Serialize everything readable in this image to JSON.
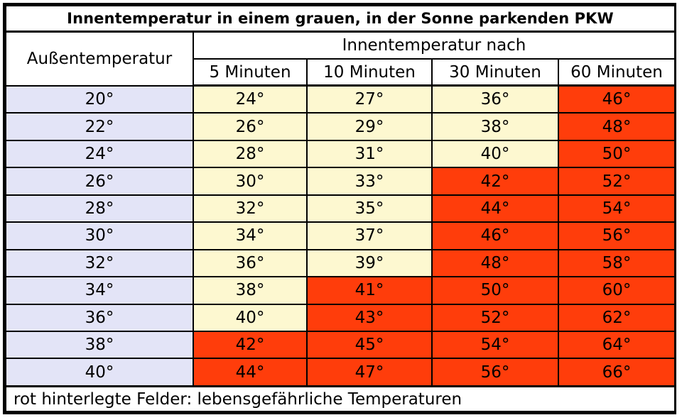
{
  "title": "Innentemperatur in einem grauen, in der Sonne parkenden PKW",
  "header": {
    "outside_label": "Außentemperatur",
    "inside_group_label": "Innentemperatur nach",
    "time_labels": [
      "5 Minuten",
      "10 Minuten",
      "30 Minuten",
      "60 Minuten"
    ]
  },
  "colors": {
    "outside_column": "#e3e4f7",
    "safe_cell": "#fdf8d0",
    "dangerous_cell": "#ff3d0b"
  },
  "rows": [
    {
      "outside": "20°",
      "values": [
        "24°",
        "27°",
        "36°",
        "46°"
      ],
      "danger": [
        false,
        false,
        false,
        true
      ]
    },
    {
      "outside": "22°",
      "values": [
        "26°",
        "29°",
        "38°",
        "48°"
      ],
      "danger": [
        false,
        false,
        false,
        true
      ]
    },
    {
      "outside": "24°",
      "values": [
        "28°",
        "31°",
        "40°",
        "50°"
      ],
      "danger": [
        false,
        false,
        false,
        true
      ]
    },
    {
      "outside": "26°",
      "values": [
        "30°",
        "33°",
        "42°",
        "52°"
      ],
      "danger": [
        false,
        false,
        true,
        true
      ]
    },
    {
      "outside": "28°",
      "values": [
        "32°",
        "35°",
        "44°",
        "54°"
      ],
      "danger": [
        false,
        false,
        true,
        true
      ]
    },
    {
      "outside": "30°",
      "values": [
        "34°",
        "37°",
        "46°",
        "56°"
      ],
      "danger": [
        false,
        false,
        true,
        true
      ]
    },
    {
      "outside": "32°",
      "values": [
        "36°",
        "39°",
        "48°",
        "58°"
      ],
      "danger": [
        false,
        false,
        true,
        true
      ]
    },
    {
      "outside": "34°",
      "values": [
        "38°",
        "41°",
        "50°",
        "60°"
      ],
      "danger": [
        false,
        true,
        true,
        true
      ]
    },
    {
      "outside": "36°",
      "values": [
        "40°",
        "43°",
        "52°",
        "62°"
      ],
      "danger": [
        false,
        true,
        true,
        true
      ]
    },
    {
      "outside": "38°",
      "values": [
        "42°",
        "45°",
        "54°",
        "64°"
      ],
      "danger": [
        true,
        true,
        true,
        true
      ]
    },
    {
      "outside": "40°",
      "values": [
        "44°",
        "47°",
        "56°",
        "66°"
      ],
      "danger": [
        true,
        true,
        true,
        true
      ]
    }
  ],
  "footer": "rot hinterlegte Felder: lebensgefährliche Temperaturen"
}
